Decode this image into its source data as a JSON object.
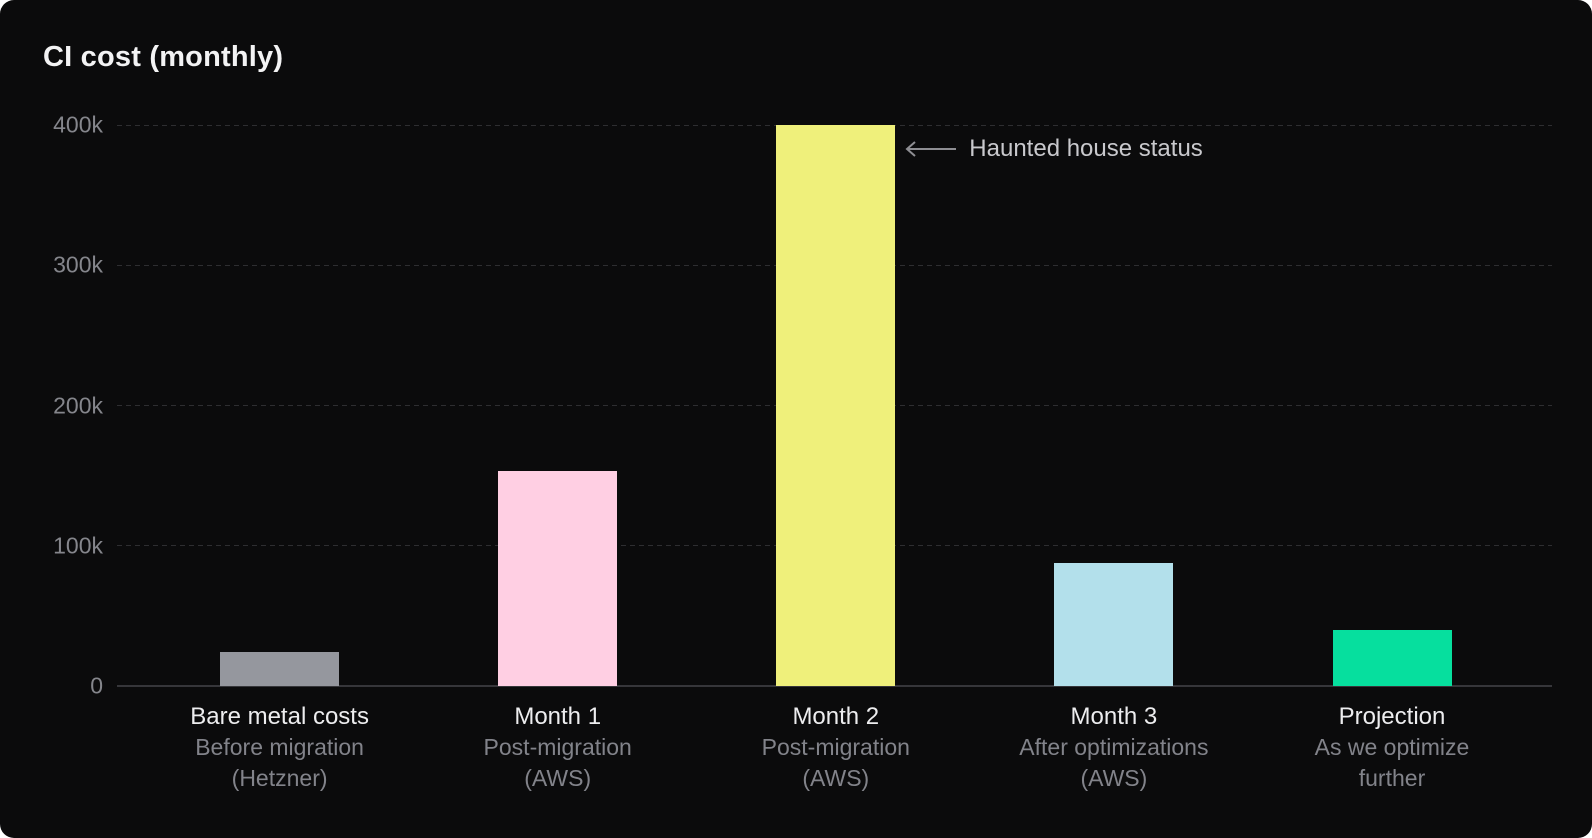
{
  "chart_data": {
    "type": "bar",
    "title": "CI cost (monthly)",
    "xlabel": "",
    "ylabel": "",
    "ylim": [
      0,
      400000
    ],
    "grid": true,
    "legend": false,
    "yticks": [
      {
        "value": 400000,
        "label": "400k"
      },
      {
        "value": 300000,
        "label": "300k"
      },
      {
        "value": 200000,
        "label": "200k"
      },
      {
        "value": 100000,
        "label": "100k"
      },
      {
        "value": 0,
        "label": "0"
      }
    ],
    "categories": [
      {
        "label": "Bare metal costs",
        "sublabel_lines": [
          "Before migration",
          "(Hetzner)"
        ]
      },
      {
        "label": "Month 1",
        "sublabel_lines": [
          "Post-migration",
          "(AWS)"
        ]
      },
      {
        "label": "Month 2",
        "sublabel_lines": [
          "Post-migration",
          "(AWS)"
        ]
      },
      {
        "label": "Month 3",
        "sublabel_lines": [
          "After optimizations",
          "(AWS)"
        ]
      },
      {
        "label": "Projection",
        "sublabel_lines": [
          "As we optimize",
          "further"
        ]
      }
    ],
    "values": [
      24000,
      153000,
      400000,
      88000,
      40000
    ],
    "colors": [
      "#95979e",
      "#ffcfe3",
      "#eff07b",
      "#b3e0eb",
      "#06df9e"
    ],
    "annotations": [
      {
        "text": "Haunted house status",
        "target_category": "Month 2"
      }
    ]
  }
}
